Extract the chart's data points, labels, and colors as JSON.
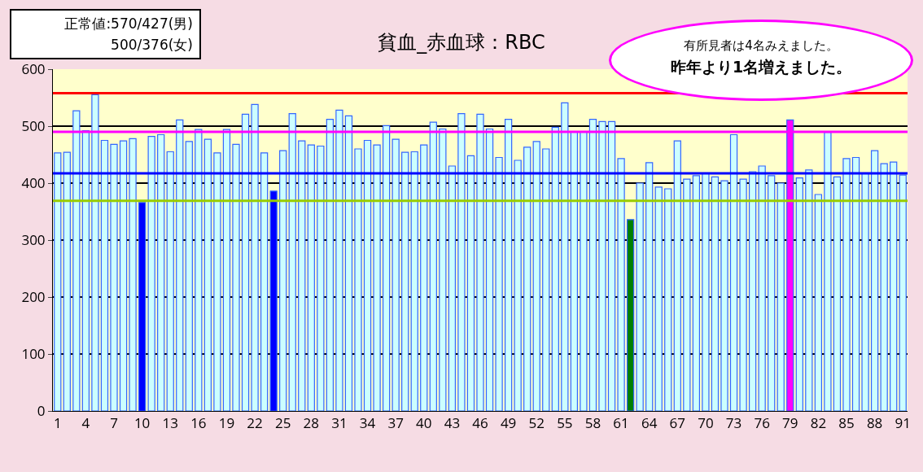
{
  "chart_data": {
    "type": "bar",
    "title": "貧血_赤血球：RBC",
    "categories": [
      "1",
      null,
      null,
      "4",
      null,
      null,
      "7",
      null,
      null,
      "10",
      null,
      null,
      "13",
      null,
      null,
      "16",
      null,
      null,
      "19",
      null,
      null,
      "22",
      null,
      null,
      "25",
      null,
      null,
      "28",
      null,
      null,
      "31",
      null,
      null,
      "34",
      null,
      null,
      "37",
      null,
      null,
      "40",
      null,
      null,
      "43",
      null,
      null,
      "46",
      null,
      null,
      "49",
      null,
      null,
      "52",
      null,
      null,
      "55",
      null,
      null,
      "58",
      null,
      null,
      "61",
      null,
      null,
      "64",
      null,
      null,
      "67",
      null,
      null,
      "70",
      null,
      null,
      "73",
      null,
      null,
      "76",
      null,
      null,
      "79",
      null,
      null,
      "82",
      null,
      null,
      "85",
      null,
      null,
      "88",
      null,
      null,
      "91"
    ],
    "values": [
      453,
      454,
      527,
      492,
      555,
      475,
      468,
      474,
      478,
      366,
      482,
      485,
      455,
      511,
      473,
      494,
      477,
      453,
      494,
      468,
      521,
      538,
      453,
      386,
      457,
      522,
      474,
      467,
      465,
      512,
      528,
      518,
      460,
      475,
      467,
      501,
      477,
      454,
      455,
      467,
      507,
      495,
      430,
      522,
      448,
      521,
      495,
      445,
      512,
      440,
      463,
      473,
      460,
      498,
      541,
      490,
      490,
      512,
      508,
      508,
      443,
      336,
      400,
      436,
      393,
      390,
      474,
      407,
      413,
      417,
      411,
      404,
      485,
      407,
      420,
      430,
      413,
      400,
      511,
      409,
      423,
      380,
      489,
      411,
      443,
      445,
      417,
      457,
      434,
      437,
      414
    ],
    "colors": [
      "#ccffff",
      "#ccffff",
      "#ccffff",
      "#ccffff",
      "#ccffff",
      "#ccffff",
      "#ccffff",
      "#ccffff",
      "#ccffff",
      "#0000ff",
      "#ccffff",
      "#ccffff",
      "#ccffff",
      "#ccffff",
      "#ccffff",
      "#ccffff",
      "#ccffff",
      "#ccffff",
      "#ccffff",
      "#ccffff",
      "#ccffff",
      "#ccffff",
      "#ccffff",
      "#0000ff",
      "#ccffff",
      "#ccffff",
      "#ccffff",
      "#ccffff",
      "#ccffff",
      "#ccffff",
      "#ccffff",
      "#ccffff",
      "#ccffff",
      "#ccffff",
      "#ccffff",
      "#ccffff",
      "#ccffff",
      "#ccffff",
      "#ccffff",
      "#ccffff",
      "#ccffff",
      "#ccffff",
      "#ccffff",
      "#ccffff",
      "#ccffff",
      "#ccffff",
      "#ccffff",
      "#ccffff",
      "#ccffff",
      "#ccffff",
      "#ccffff",
      "#ccffff",
      "#ccffff",
      "#ccffff",
      "#ccffff",
      "#ccffff",
      "#ccffff",
      "#ccffff",
      "#ccffff",
      "#ccffff",
      "#ccffff",
      "#008000",
      "#ccffff",
      "#ccffff",
      "#ccffff",
      "#ccffff",
      "#ccffff",
      "#ccffff",
      "#ccffff",
      "#ccffff",
      "#ccffff",
      "#ccffff",
      "#ccffff",
      "#ccffff",
      "#ccffff",
      "#ccffff",
      "#ccffff",
      "#ccffff",
      "#ff00ff",
      "#ccffff",
      "#ccffff",
      "#ccffff",
      "#ccffff",
      "#ccffff",
      "#ccffff",
      "#ccffff",
      "#ccffff",
      "#ccffff",
      "#ccffff",
      "#ccffff",
      "#ccffff"
    ],
    "ylim": [
      0,
      600
    ],
    "yticks": [
      0,
      100,
      200,
      300,
      400,
      500,
      600
    ],
    "grid": "y",
    "ref_lines": [
      {
        "axis": "y",
        "value": 558,
        "color": "#ff0000"
      },
      {
        "axis": "y",
        "value": 490,
        "color": "#ff00ff"
      },
      {
        "axis": "y",
        "value": 417,
        "color": "#0000ff"
      },
      {
        "axis": "y",
        "value": 369,
        "color": "#99cc00"
      }
    ],
    "annotations": [
      "正常値:570/427(男)",
      "500/376(女)",
      "有所見者は4名みえました。",
      "昨年より1名増えました。"
    ]
  }
}
